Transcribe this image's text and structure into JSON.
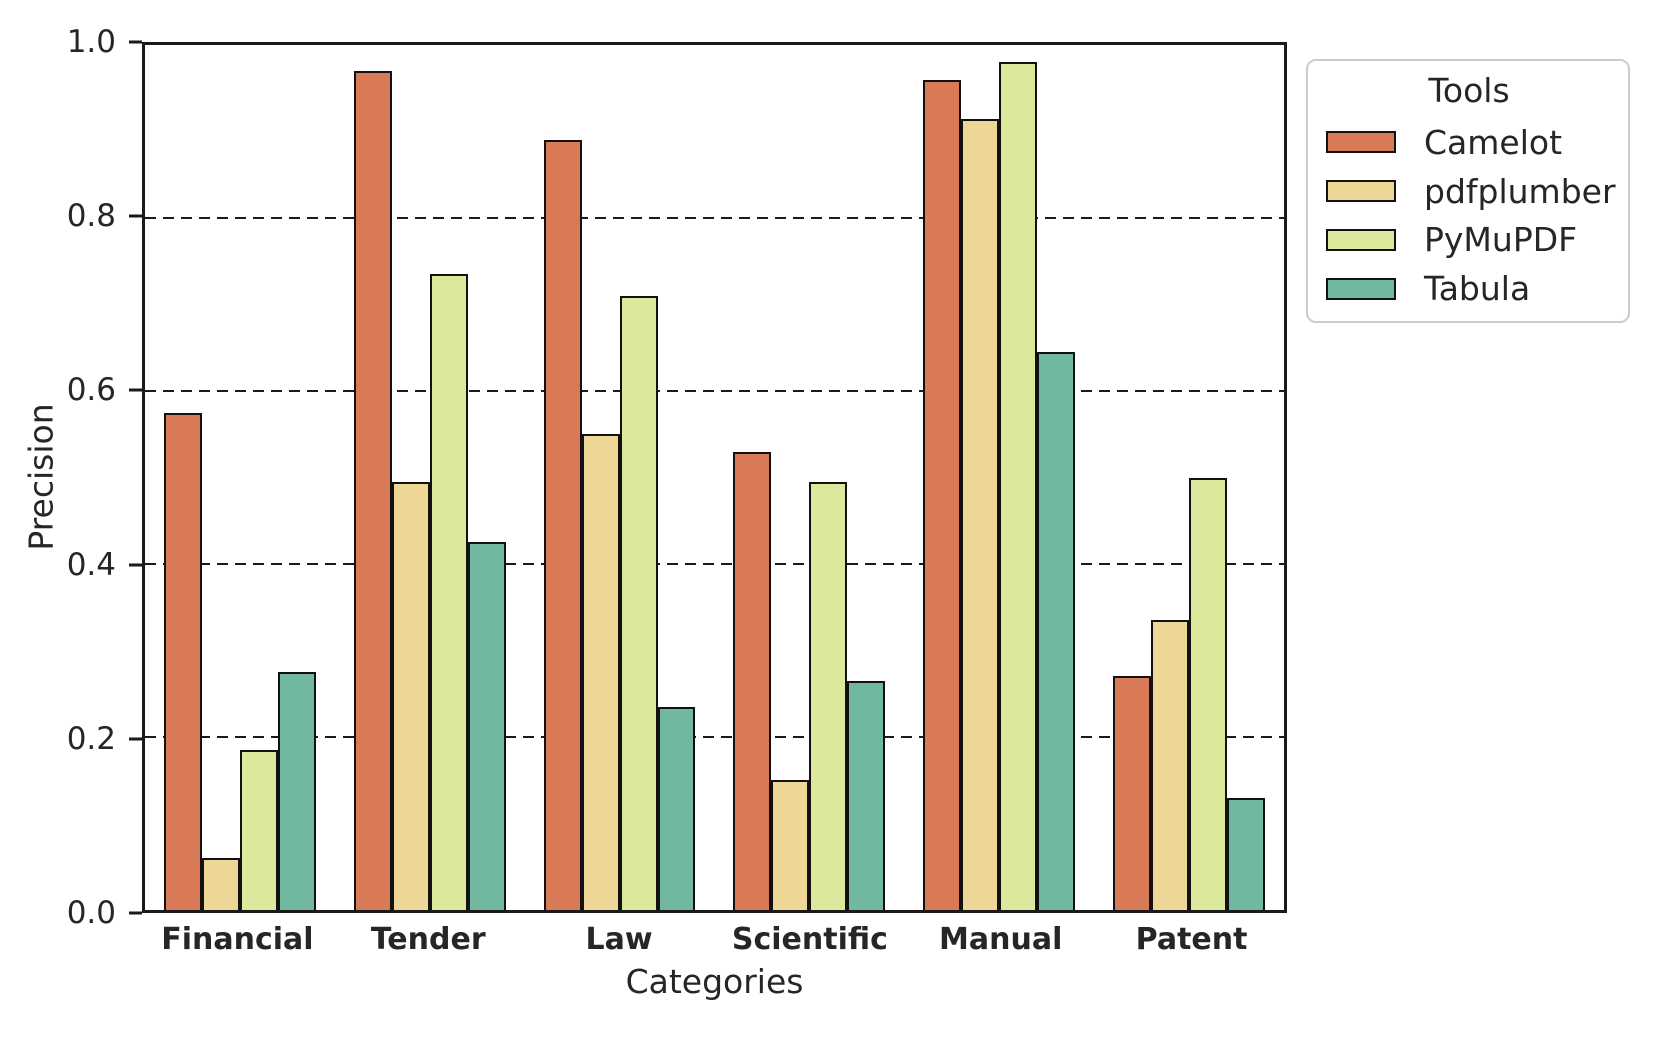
{
  "chart_data": {
    "type": "bar",
    "title": "",
    "xlabel": "Categories",
    "ylabel": "Precision",
    "categories": [
      "Financial",
      "Tender",
      "Law",
      "Scientific",
      "Manual",
      "Patent"
    ],
    "series": [
      {
        "name": "Camelot",
        "color": "#D87A58",
        "values": [
          0.575,
          0.97,
          0.89,
          0.53,
          0.96,
          0.27
        ]
      },
      {
        "name": "pdfplumber",
        "color": "#EED796",
        "values": [
          0.06,
          0.495,
          0.55,
          0.15,
          0.915,
          0.335
        ]
      },
      {
        "name": "PyMuPDF",
        "color": "#DCE99D",
        "values": [
          0.185,
          0.735,
          0.71,
          0.495,
          0.98,
          0.5
        ]
      },
      {
        "name": "Tabula",
        "color": "#72B79F",
        "values": [
          0.275,
          0.425,
          0.235,
          0.265,
          0.645,
          0.13
        ]
      }
    ],
    "ylim": [
      0,
      1.0
    ],
    "yticks": [
      "0.0",
      "0.2",
      "0.4",
      "0.6",
      "0.8",
      "1.0"
    ],
    "grid": "horizontal dashed lines at 0.2 intervals",
    "legend": {
      "title": "Tools",
      "position": "outside upper right"
    }
  }
}
